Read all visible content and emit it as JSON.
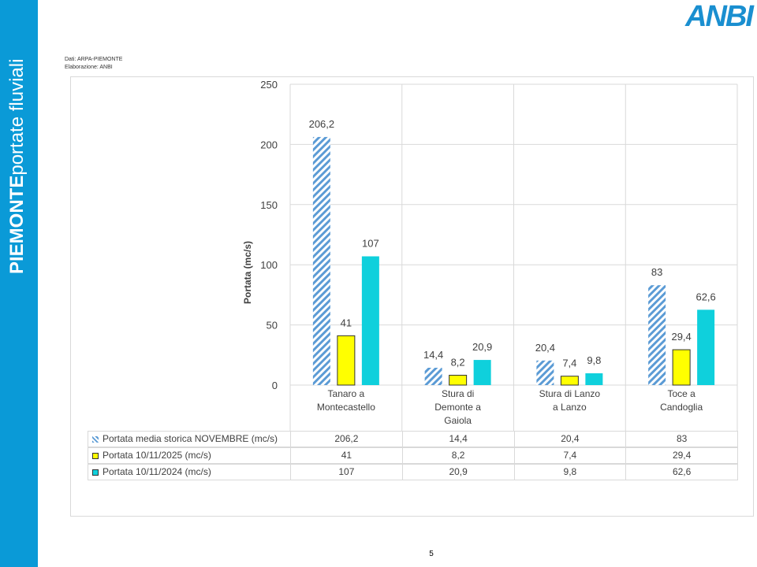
{
  "sidebar": {
    "title": "PIEMONTE",
    "subtitle": "portate fluviali"
  },
  "logo": "ANBI",
  "source": [
    "Dati: ARPA-PIEMONTE",
    "Elaborazione: ANBI"
  ],
  "page_number": 5,
  "chart_data": {
    "type": "bar",
    "y_label": "Portata (mc/s)",
    "categories": [
      "Tanaro a Montecastello",
      "Stura di Demonte a Gaiola",
      "Stura di Lanzo a Lanzo",
      "Toce a Candoglia"
    ],
    "series": [
      {
        "name": "Portata media storica NOVEMBRE (mc/s)",
        "color": "#5b9bd5",
        "pattern": "hatch",
        "values": [
          206.2,
          14.4,
          20.4,
          83
        ],
        "value_labels": [
          "206,2",
          "14,4",
          "20,4",
          "83"
        ]
      },
      {
        "name": "Portata 10/11/2025 (mc/s)",
        "color": "#ffff00",
        "pattern": "solid",
        "values": [
          41,
          8.2,
          7.4,
          29.4
        ],
        "value_labels": [
          "41",
          "8,2",
          "7,4",
          "29,4"
        ]
      },
      {
        "name": "Portata 10/11/2024 (mc/s)",
        "color": "#0fd0dc",
        "pattern": "solid",
        "values": [
          107,
          20.9,
          9.8,
          62.6
        ],
        "value_labels": [
          "107",
          "20,9",
          "9,8",
          "62,6"
        ]
      }
    ],
    "ylim": [
      0,
      250
    ],
    "yticks": [
      0,
      50,
      100,
      150,
      200,
      250
    ],
    "grid": true,
    "data_table": true
  }
}
